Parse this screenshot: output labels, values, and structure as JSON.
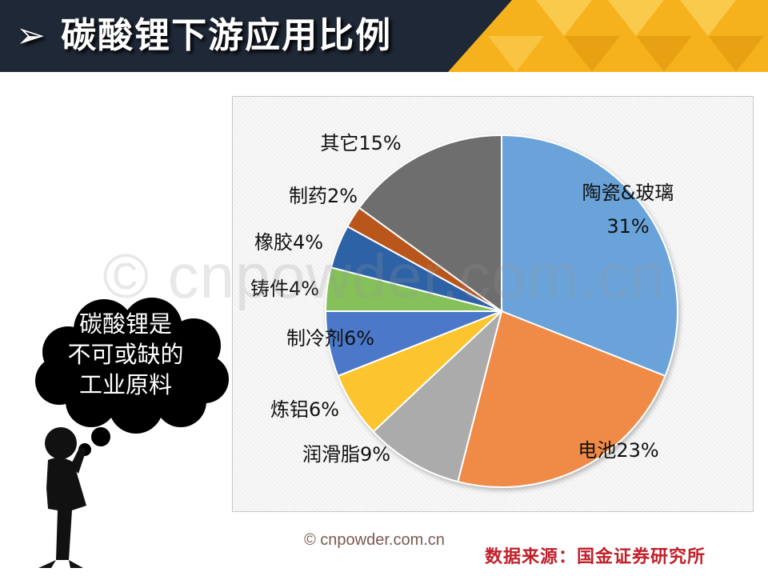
{
  "header": {
    "title": "➢ 碳酸锂下游应用比例",
    "colors": {
      "bar": "#1f2837",
      "accent": "#f6b21d"
    }
  },
  "watermark": "© cnpowder.com.cn",
  "thought_bubble": {
    "lines": [
      "碳酸锂是",
      "不可或缺的",
      "工业原料"
    ]
  },
  "chart_data": {
    "type": "pie",
    "title": "",
    "start_angle_deg": 0,
    "direction": "clockwise",
    "slices": [
      {
        "label": "陶瓷&玻璃",
        "value": 31,
        "value_text": "31%",
        "color": "#6aa3d9"
      },
      {
        "label": "电池",
        "value": 23,
        "value_text": "23%",
        "color": "#f08a47"
      },
      {
        "label": "润滑脂",
        "value": 9,
        "value_text": "9%",
        "color": "#ababab"
      },
      {
        "label": "炼铝",
        "value": 6,
        "value_text": "6%",
        "color": "#fcc42d"
      },
      {
        "label": "制冷剂",
        "value": 6,
        "value_text": "6%",
        "color": "#4c78c9"
      },
      {
        "label": "铸件",
        "value": 4,
        "value_text": "4%",
        "color": "#85c05a"
      },
      {
        "label": "橡胶",
        "value": 4,
        "value_text": "4%",
        "color": "#2d62a6"
      },
      {
        "label": "制药",
        "value": 2,
        "value_text": "2%",
        "color": "#b8561f"
      },
      {
        "label": "其它",
        "value": 15,
        "value_text": "15%",
        "color": "#6e6e6e"
      }
    ]
  },
  "footer": {
    "copyright": "© cnpowder.com.cn",
    "source": "数据来源：国金证券研究所"
  }
}
